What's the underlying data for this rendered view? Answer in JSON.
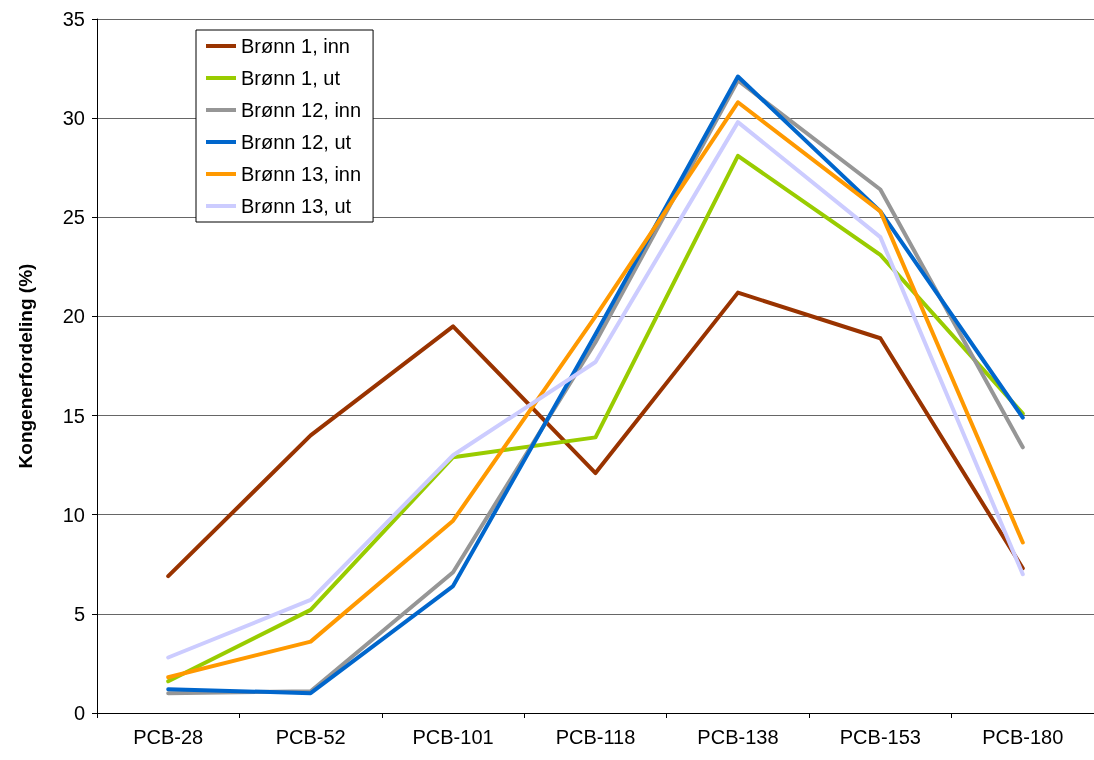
{
  "chart_data": {
    "type": "line",
    "ylabel": "Kongenerfordeling (%)",
    "categories": [
      "PCB-28",
      "PCB-52",
      "PCB-101",
      "PCB-118",
      "PCB-138",
      "PCB-153",
      "PCB-180"
    ],
    "ylim": [
      0,
      35
    ],
    "yticks": [
      0,
      5,
      10,
      15,
      20,
      25,
      30,
      35
    ],
    "grid": "y",
    "legend": "top left",
    "marker": "none",
    "line_style": "solid",
    "series": [
      {
        "name": "Brønn 1, inn",
        "color": "#993300",
        "values": [
          6.9,
          14.0,
          19.5,
          12.1,
          21.2,
          18.9,
          7.3
        ]
      },
      {
        "name": "Brønn 1, ut",
        "color": "#99cc00",
        "values": [
          1.6,
          5.2,
          12.9,
          13.9,
          28.1,
          23.1,
          15.1
        ]
      },
      {
        "name": "Brønn 12, inn",
        "color": "#969696",
        "values": [
          1.0,
          1.1,
          7.1,
          18.7,
          31.9,
          26.4,
          13.4
        ]
      },
      {
        "name": "Brønn 12, ut",
        "color": "#0066cc",
        "values": [
          1.2,
          1.0,
          6.4,
          19.1,
          32.1,
          25.3,
          14.9
        ]
      },
      {
        "name": "Brønn 13, inn",
        "color": "#ff9900",
        "values": [
          1.8,
          3.6,
          9.7,
          20.0,
          30.8,
          25.3,
          8.6
        ]
      },
      {
        "name": "Brønn 13, ut",
        "color": "#ccccff",
        "values": [
          2.8,
          5.7,
          13.0,
          17.7,
          29.8,
          24.0,
          7.0
        ]
      }
    ]
  }
}
